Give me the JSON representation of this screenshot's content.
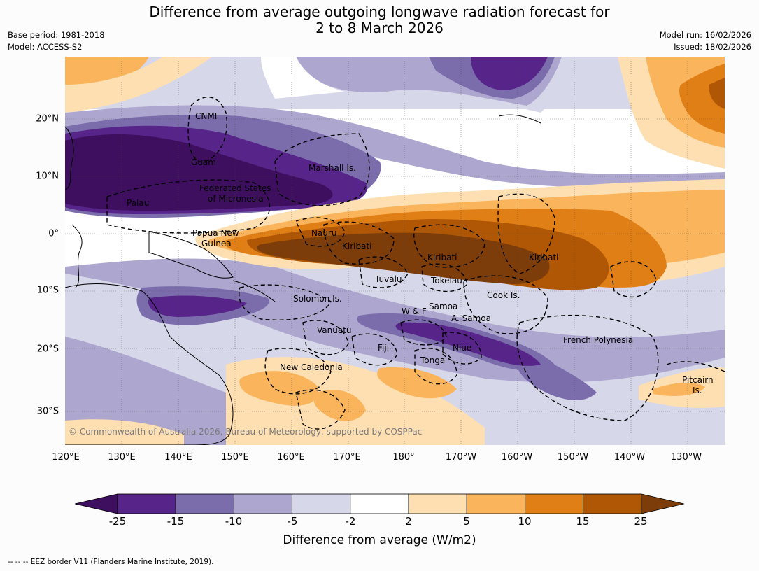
{
  "title": {
    "line1": "Difference from average outgoing longwave radiation forecast for",
    "line2": "2 to 8 March 2026"
  },
  "meta_left": {
    "base_period": "Base period: 1981-2018",
    "model": "Model: ACCESS-S2"
  },
  "meta_right": {
    "model_run": "Model run: 16/02/2026",
    "issued": "Issued: 18/02/2026"
  },
  "lon_ticks": [
    "120°E",
    "130°E",
    "140°E",
    "150°E",
    "160°E",
    "170°E",
    "180°",
    "170°W",
    "160°W",
    "150°W",
    "140°W",
    "130°W"
  ],
  "lat_ticks": [
    "20°N",
    "10°N",
    "0°",
    "10°S",
    "20°S",
    "30°S"
  ],
  "places": {
    "cnmi": "CNMI",
    "guam": "Guam",
    "marshall": "Marshall Is.",
    "fsm1": "Federated States",
    "fsm2": "of Micronesia",
    "palau": "Palau",
    "png1": "Papua New",
    "png2": "Guinea",
    "nauru": "Nauru",
    "kiribati_w": "Kiribati",
    "kiribati_c": "Kiribati",
    "kiribati_e": "Kiribati",
    "tuvalu": "Tuvalu",
    "tokelau": "Tokelau",
    "cook": "Cook Is.",
    "solomon": "Solomon Is.",
    "samoa": "Samoa",
    "wf": "W & F",
    "asamoa": "A. Samoa",
    "vanuatu": "Vanuatu",
    "fiji": "Fiji",
    "niue": "Niue",
    "tonga": "Tonga",
    "frpoly": "French Polynesia",
    "newcal": "New Caledonia",
    "pitcairn1": "Pitcairn",
    "pitcairn2": "Is."
  },
  "copyright": "© Commonwealth of Australia 2026, Bureau of Meteorology, supported by COSPPac",
  "colorbar": {
    "levels": [
      "-25",
      "-15",
      "-10",
      "-5",
      "-2",
      "2",
      "5",
      "10",
      "15",
      "25"
    ],
    "colors": [
      "#3d0f5e",
      "#572489",
      "#7b6cac",
      "#ada7cf",
      "#d7d7ea",
      "#ffffff",
      "#fddfb2",
      "#fab45c",
      "#e17f17",
      "#b05706",
      "#7c3d0b"
    ],
    "label": "Difference from average (W/m2)"
  },
  "legend": "--  --  -- EEZ border V11 (Flanders Marine Institute, 2019)."
}
